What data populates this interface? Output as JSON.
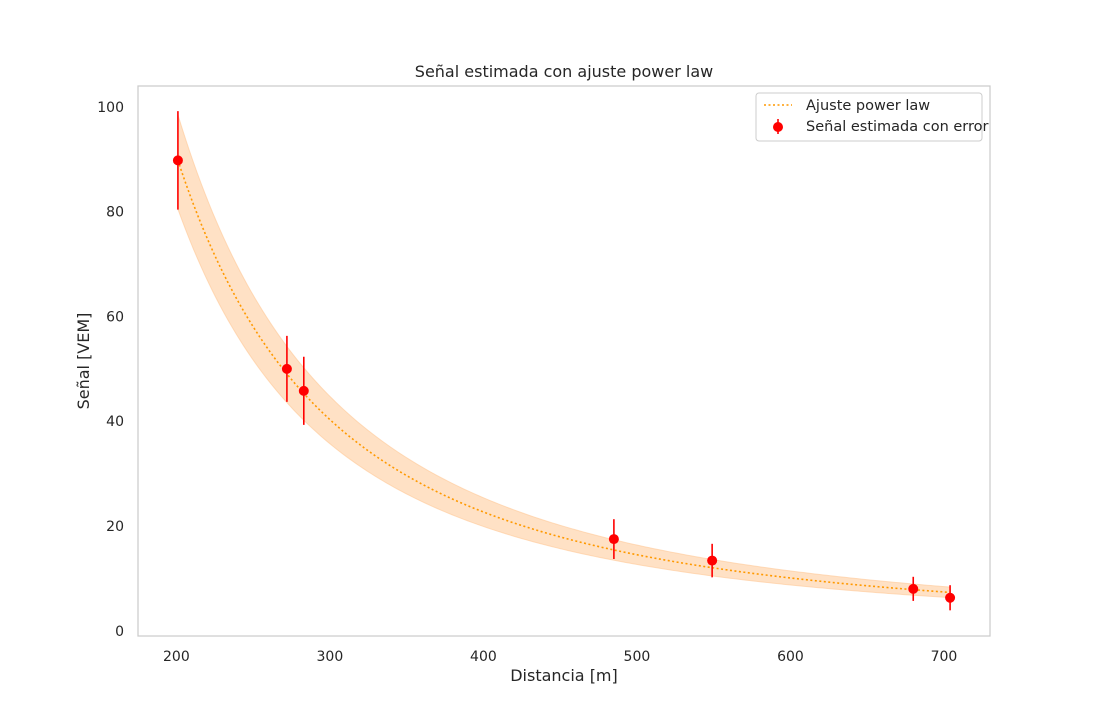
{
  "chart_data": {
    "type": "scatter",
    "title": "Señal estimada con ajuste power law",
    "xlabel": "Distancia [m]",
    "ylabel": "Señal [VEM]",
    "xlim": [
      175,
      730
    ],
    "ylim": [
      -1,
      104
    ],
    "xticks": [
      200,
      300,
      400,
      500,
      600,
      700
    ],
    "yticks": [
      0,
      20,
      40,
      60,
      80,
      100
    ],
    "grid": false,
    "legend_position": "top-right",
    "series": [
      {
        "name": "Ajuste power law",
        "kind": "fit-line",
        "color": "#ff9900",
        "style": "dotted",
        "x_range": [
          201,
          704
        ],
        "amplitude": 89.8,
        "x_ref": 201,
        "exponent": -2.0,
        "band_amplitude_low": 80.5,
        "band_amplitude_high": 98.5,
        "band_exponent_low": -2.03,
        "band_exponent_high": -1.97,
        "band_color": "#ffc896"
      },
      {
        "name": "Señal estimada con error",
        "kind": "errorbar",
        "color": "#ff0000",
        "x": [
          201,
          272,
          283,
          485,
          549,
          680,
          704
        ],
        "y": [
          89.8,
          50.0,
          45.8,
          17.5,
          13.4,
          8.0,
          6.3
        ],
        "yerr": [
          9.4,
          6.3,
          6.5,
          3.8,
          3.2,
          2.3,
          2.4
        ]
      }
    ]
  }
}
